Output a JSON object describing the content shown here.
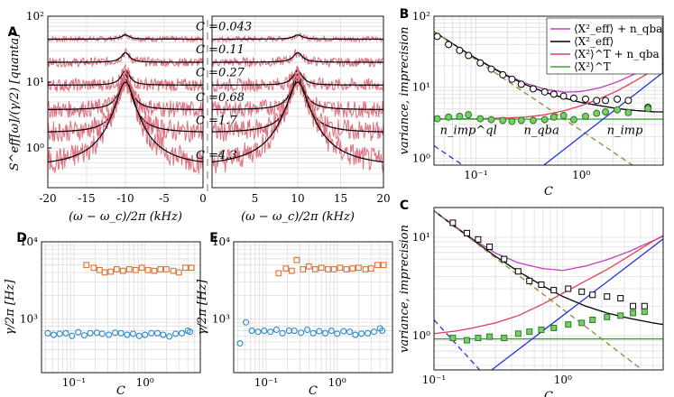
{
  "chart_data": [
    {
      "panel": "A",
      "type": "line",
      "ylabel": "S^eff[ω]/(γ/2) [quanta]",
      "xlabel_left": "(ω − ω_c)/2π (kHz)",
      "xlabel_right": "(ω − ω_c)/2π (kHz)",
      "yscale": "log",
      "ylim": [
        0.25,
        100
      ],
      "yticks": [
        {
          "v": 1,
          "label": "10⁰"
        },
        {
          "v": 10,
          "label": "10¹"
        },
        {
          "v": 100,
          "label": "10²"
        }
      ],
      "xlim_left": [
        -20,
        0
      ],
      "xlim_right": [
        0,
        20
      ],
      "xticks_left": [
        {
          "v": -20,
          "label": "-20"
        },
        {
          "v": -15,
          "label": "-15"
        },
        {
          "v": -10,
          "label": "-10"
        },
        {
          "v": -5,
          "label": "-5"
        },
        {
          "v": 0,
          "label": "0"
        }
      ],
      "xticks_right": [
        {
          "v": 5,
          "label": "5"
        },
        {
          "v": 10,
          "label": "10"
        },
        {
          "v": 15,
          "label": "15"
        },
        {
          "v": 20,
          "label": "20"
        }
      ],
      "peak_center_khz": 10,
      "traces": [
        {
          "C": "0.043",
          "label": "C =0.043",
          "baseline": 45,
          "peak": 52,
          "width_khz": 0.6
        },
        {
          "C": "0.11",
          "label": "C =0.11",
          "baseline": 20,
          "peak": 28,
          "width_khz": 0.6
        },
        {
          "C": "0.27",
          "label": "C =0.27",
          "baseline": 9,
          "peak": 15,
          "width_khz": 0.6
        },
        {
          "C": "0.68",
          "label": "C =0.68",
          "baseline": 3.8,
          "peak": 13,
          "width_khz": 0.65
        },
        {
          "C": "1.7",
          "label": "C =1.7",
          "baseline": 1.7,
          "peak": 11,
          "width_khz": 0.8
        },
        {
          "C": "4.3",
          "label": "C =4.3",
          "baseline": 0.5,
          "peak": 10,
          "width_khz": 1.1
        }
      ]
    },
    {
      "panel": "B",
      "type": "line",
      "ylabel": "variance, imprecision",
      "xlabel": "C",
      "xscale": "log",
      "yscale": "log",
      "xlim": [
        0.04,
        6.0
      ],
      "ylim": [
        0.8,
        100
      ],
      "xticks": [
        {
          "v": 0.1,
          "label": "10⁻¹"
        },
        {
          "v": 1,
          "label": "10⁰"
        }
      ],
      "yticks": [
        {
          "v": 1,
          "label": "10⁰"
        },
        {
          "v": 10,
          "label": "10¹"
        },
        {
          "v": 100,
          "label": "10²"
        }
      ],
      "legend": [
        {
          "label": "⟨X²_eff⟩ + n_qba",
          "color": "#c040c0"
        },
        {
          "label": "⟨X²_eff⟩",
          "color": "#000000"
        },
        {
          "label": "⟨X²⟩^T + n_qba",
          "color": "#e0405a"
        },
        {
          "label": "⟨X²⟩^T",
          "color": "#3aa63a"
        }
      ],
      "annotations": [
        {
          "text": "n_imp^ql",
          "C": 0.085,
          "v": 2.2
        },
        {
          "text": "n_qba",
          "C": 0.42,
          "v": 2.2
        },
        {
          "text": "n_imp",
          "C": 2.6,
          "v": 2.2
        }
      ],
      "series": [
        {
          "name": "eff_plus_qba",
          "color": "#c040c0",
          "style": "solid",
          "x": [
            0.04,
            0.06,
            0.09,
            0.14,
            0.2,
            0.3,
            0.45,
            0.7,
            1.0,
            1.5,
            2.2,
            3.3,
            5.0,
            6.0
          ],
          "values": [
            60.8,
            41.2,
            28.1,
            19.4,
            14.7,
            11.3,
            9.4,
            8.5,
            8.7,
            9.8,
            11.9,
            15.6,
            21.9,
            25.8
          ]
        },
        {
          "name": "eff",
          "color": "#000000",
          "style": "solid",
          "x": [
            0.04,
            0.06,
            0.09,
            0.14,
            0.2,
            0.3,
            0.45,
            0.7,
            1.0,
            1.5,
            2.2,
            3.3,
            5.0,
            6.0
          ],
          "values": [
            60.7,
            41.1,
            27.9,
            19.1,
            14.3,
            10.8,
            8.5,
            7.0,
            6.1,
            5.5,
            5.0,
            4.7,
            4.5,
            4.5
          ]
        },
        {
          "name": "thermal_plus_qba",
          "color": "#e0405a",
          "style": "solid",
          "x": [
            0.04,
            0.1,
            0.2,
            0.3,
            0.45,
            0.7,
            1.0,
            1.5,
            2.2,
            3.3,
            5.0,
            6.0
          ],
          "values": [
            3.6,
            3.6,
            3.7,
            3.8,
            4.1,
            4.7,
            5.5,
            6.9,
            8.9,
            12.4,
            17.9,
            21.3
          ]
        },
        {
          "name": "thermal",
          "color": "#3aa63a",
          "style": "solid",
          "x": [
            0.04,
            6.0
          ],
          "values": [
            3.55,
            3.55
          ]
        },
        {
          "name": "n_imp",
          "color": "#8a8a3a",
          "style": "dashed",
          "x": [
            0.04,
            6.0
          ],
          "values": [
            60.7,
            0.41
          ]
        },
        {
          "name": "n_imp_ql",
          "color": "#2233dd",
          "style": "dashed",
          "x": [
            0.04,
            6.0
          ],
          "values": [
            1.5,
            0.01
          ]
        },
        {
          "name": "n_qba",
          "color": "#2233dd",
          "style": "solid",
          "x": [
            0.04,
            6.0
          ],
          "values": [
            0.05,
            16.2
          ]
        }
      ],
      "markers": [
        {
          "name": "eff_points",
          "shape": "circle",
          "stroke": "#000000",
          "fill": "#ffffff",
          "x": [
            0.043,
            0.055,
            0.07,
            0.085,
            0.11,
            0.14,
            0.18,
            0.22,
            0.27,
            0.35,
            0.45,
            0.55,
            0.68,
            0.85,
            1.1,
            1.4,
            1.7,
            2.2,
            2.8,
            4.3
          ],
          "values": [
            52,
            40,
            33,
            28,
            22,
            18,
            15,
            13,
            11,
            9.5,
            8.6,
            8.0,
            7.5,
            7.0,
            6.8,
            6.5,
            6.5,
            6.8,
            6.5,
            5.2
          ]
        },
        {
          "name": "thermal_points",
          "shape": "circle",
          "stroke": "#2a7a2a",
          "fill": "#7ccc66",
          "x": [
            0.043,
            0.055,
            0.07,
            0.085,
            0.11,
            0.14,
            0.18,
            0.22,
            0.27,
            0.35,
            0.45,
            0.55,
            0.68,
            0.85,
            1.1,
            1.4,
            1.7,
            2.2,
            2.8,
            4.3
          ],
          "values": [
            3.6,
            3.8,
            3.9,
            4.1,
            3.6,
            3.5,
            3.4,
            3.3,
            3.4,
            3.4,
            3.5,
            3.8,
            4.0,
            3.5,
            3.9,
            4.3,
            4.5,
            4.8,
            4.4,
            5.0
          ]
        }
      ]
    },
    {
      "panel": "C",
      "type": "line",
      "ylabel": "variance, imprecision",
      "xlabel": "C",
      "xscale": "log",
      "yscale": "log",
      "xlim": [
        0.1,
        6.0
      ],
      "ylim": [
        0.45,
        20
      ],
      "xticks": [
        {
          "v": 0.1,
          "label": "10⁻¹"
        },
        {
          "v": 1,
          "label": "10⁰"
        }
      ],
      "yticks": [
        {
          "v": 1,
          "label": "10⁰"
        },
        {
          "v": 10,
          "label": "10¹"
        }
      ],
      "series": [
        {
          "name": "eff_plus_qba",
          "color": "#c040c0",
          "style": "solid",
          "x": [
            0.1,
            0.14,
            0.2,
            0.3,
            0.45,
            0.7,
            1.0,
            1.5,
            2.2,
            3.3,
            5.0,
            6.0
          ],
          "values": [
            18.6,
            13.4,
            9.6,
            6.9,
            5.5,
            4.8,
            4.6,
            5.1,
            5.9,
            7.2,
            9.2,
            10.2
          ]
        },
        {
          "name": "eff",
          "color": "#000000",
          "style": "solid",
          "x": [
            0.1,
            0.14,
            0.2,
            0.3,
            0.45,
            0.7,
            1.0,
            1.5,
            2.2,
            3.3,
            5.0,
            6.0
          ],
          "values": [
            18.5,
            13.2,
            9.4,
            6.4,
            4.5,
            3.2,
            2.5,
            2.0,
            1.7,
            1.5,
            1.35,
            1.3
          ]
        },
        {
          "name": "thermal_plus_qba",
          "color": "#e0405a",
          "style": "solid",
          "x": [
            0.1,
            0.15,
            0.2,
            0.3,
            0.45,
            0.7,
            1.0,
            1.5,
            2.2,
            3.3,
            5.0,
            6.0
          ],
          "values": [
            1.05,
            1.12,
            1.2,
            1.35,
            1.6,
            2.1,
            2.7,
            3.6,
            4.7,
            6.5,
            9.1,
            10.4
          ]
        },
        {
          "name": "thermal",
          "color": "#3aa63a",
          "style": "solid",
          "x": [
            0.1,
            6.0
          ],
          "values": [
            0.93,
            0.93
          ]
        },
        {
          "name": "n_imp",
          "color": "#8a8a3a",
          "style": "dashed",
          "x": [
            0.1,
            6.0
          ],
          "values": [
            18.5,
            0.31
          ]
        },
        {
          "name": "n_imp_ql",
          "color": "#2233dd",
          "style": "dashed",
          "x": [
            0.1,
            0.3
          ],
          "values": [
            1.45,
            0.3
          ]
        },
        {
          "name": "n_qba",
          "color": "#2233dd",
          "style": "solid",
          "x": [
            0.28,
            6.0
          ],
          "values": [
            0.45,
            9.6
          ]
        }
      ],
      "markers": [
        {
          "name": "eff_points",
          "shape": "square",
          "stroke": "#000000",
          "fill": "#ffffff",
          "x": [
            0.14,
            0.18,
            0.22,
            0.27,
            0.35,
            0.45,
            0.55,
            0.68,
            0.85,
            1.1,
            1.4,
            1.7,
            2.2,
            2.8,
            3.5,
            4.3
          ],
          "values": [
            14,
            11,
            9.5,
            8.0,
            6.0,
            4.5,
            3.6,
            3.3,
            2.9,
            3.0,
            2.8,
            2.6,
            2.5,
            2.4,
            2.0,
            2.0
          ]
        },
        {
          "name": "thermal_points",
          "shape": "square",
          "stroke": "#2a7a2a",
          "fill": "#7ccc66",
          "x": [
            0.14,
            0.18,
            0.22,
            0.27,
            0.35,
            0.45,
            0.55,
            0.68,
            0.85,
            1.1,
            1.4,
            1.7,
            2.2,
            2.8,
            3.5,
            4.3
          ],
          "values": [
            0.95,
            0.9,
            0.95,
            0.98,
            0.95,
            1.05,
            1.1,
            1.15,
            1.2,
            1.3,
            1.35,
            1.45,
            1.55,
            1.6,
            1.7,
            1.75
          ]
        }
      ]
    },
    {
      "panel": "D",
      "type": "scatter",
      "ylabel": "γ/2π [Hz]",
      "xlabel": "C",
      "xscale": "log",
      "yscale": "log",
      "xlim": [
        0.035,
        6.0
      ],
      "ylim": [
        200,
        10000
      ],
      "xticks": [
        {
          "v": 0.1,
          "label": "10⁻¹"
        },
        {
          "v": 1,
          "label": "10⁰"
        }
      ],
      "yticks": [
        {
          "v": 1000,
          "label": "10³"
        },
        {
          "v": 10000,
          "label": "10⁴"
        }
      ],
      "series": [
        {
          "name": "upper",
          "shape": "square",
          "color": "#e07030",
          "x": [
            0.15,
            0.19,
            0.23,
            0.27,
            0.33,
            0.4,
            0.49,
            0.6,
            0.74,
            0.9,
            1.1,
            1.35,
            1.65,
            2.0,
            2.5,
            3.0,
            3.7,
            4.5
          ],
          "values": [
            5000,
            4600,
            4300,
            4000,
            4100,
            4400,
            4200,
            4400,
            4300,
            4600,
            4300,
            4200,
            4400,
            4400,
            4200,
            4000,
            4600,
            4600
          ]
        },
        {
          "name": "lower",
          "shape": "circle",
          "color": "#2a8ac8",
          "x": [
            0.043,
            0.052,
            0.063,
            0.077,
            0.094,
            0.115,
            0.14,
            0.17,
            0.21,
            0.25,
            0.31,
            0.38,
            0.46,
            0.56,
            0.68,
            0.83,
            1.0,
            1.23,
            1.5,
            1.8,
            2.2,
            2.7,
            3.3,
            4.0,
            4.3
          ],
          "values": [
            650,
            620,
            640,
            650,
            600,
            670,
            610,
            650,
            660,
            640,
            620,
            660,
            650,
            620,
            640,
            600,
            620,
            650,
            650,
            620,
            590,
            640,
            650,
            700,
            680
          ]
        }
      ]
    },
    {
      "panel": "E",
      "type": "scatter",
      "ylabel": "γ/2π [Hz]",
      "xlabel": "C",
      "xscale": "log",
      "yscale": "log",
      "xlim": [
        0.035,
        6.0
      ],
      "ylim": [
        200,
        10000
      ],
      "xticks": [
        {
          "v": 0.1,
          "label": "10⁻¹"
        },
        {
          "v": 1,
          "label": "10⁰"
        }
      ],
      "yticks": [
        {
          "v": 1000,
          "label": "10³"
        },
        {
          "v": 10000,
          "label": "10⁴"
        }
      ],
      "series": [
        {
          "name": "upper",
          "shape": "square",
          "color": "#e07030",
          "x": [
            0.15,
            0.19,
            0.23,
            0.27,
            0.33,
            0.4,
            0.49,
            0.6,
            0.74,
            0.9,
            1.1,
            1.35,
            1.65,
            2.0,
            2.5,
            3.0,
            3.7,
            4.5
          ],
          "values": [
            3900,
            4500,
            4200,
            5800,
            4400,
            4800,
            4400,
            4600,
            4400,
            4400,
            4600,
            4400,
            4500,
            4600,
            4400,
            4500,
            5000,
            5000
          ]
        },
        {
          "name": "lower",
          "shape": "circle",
          "color": "#2a8ac8",
          "x": [
            0.043,
            0.052,
            0.063,
            0.077,
            0.094,
            0.115,
            0.14,
            0.17,
            0.21,
            0.25,
            0.31,
            0.38,
            0.46,
            0.56,
            0.68,
            0.83,
            1.0,
            1.23,
            1.5,
            1.8,
            2.2,
            2.7,
            3.3,
            4.0,
            4.3
          ],
          "values": [
            480,
            900,
            700,
            680,
            700,
            680,
            720,
            650,
            700,
            700,
            660,
            720,
            650,
            690,
            650,
            700,
            640,
            690,
            680,
            620,
            640,
            650,
            680,
            750,
            700
          ]
        }
      ]
    }
  ]
}
